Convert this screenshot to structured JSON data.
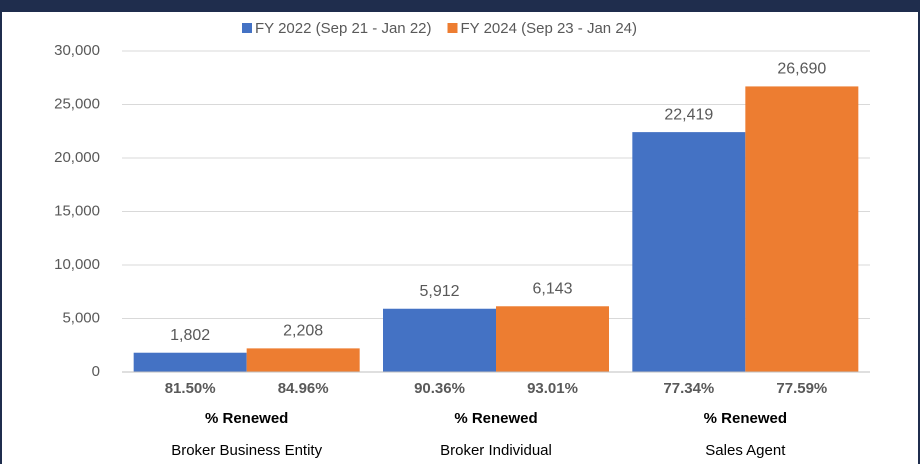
{
  "chart_data": {
    "type": "bar",
    "categories": [
      "Broker Business Entity",
      "Broker Individual",
      "Sales Agent"
    ],
    "category_sublabel": "% Renewed",
    "series": [
      {
        "name": "FY 2022 (Sep 21 - Jan 22)",
        "color": "#4472c4",
        "values": [
          1802,
          5912,
          22419
        ],
        "value_labels": [
          "1,802",
          "5,912",
          "22,419"
        ],
        "renewed": [
          "81.50%",
          "90.36%",
          "77.34%"
        ]
      },
      {
        "name": "FY 2024 (Sep 23 - Jan 24)",
        "color": "#ed7d31",
        "values": [
          2208,
          6143,
          26690
        ],
        "value_labels": [
          "2,208",
          "6,143",
          "26,690"
        ],
        "renewed": [
          "84.96%",
          "93.01%",
          "77.59%"
        ]
      }
    ],
    "ylim": [
      0,
      30000
    ],
    "yticks": [
      0,
      {
        "value": 5000,
        "label": "5,000"
      },
      {
        "value": 10000,
        "label": "10,000"
      },
      {
        "value": 15000,
        "label": "15,000"
      },
      {
        "value": 20000,
        "label": "20,000"
      },
      {
        "value": 25000,
        "label": "25,000"
      },
      {
        "value": 30000,
        "label": "30,000"
      }
    ],
    "grid": true,
    "legend": "top"
  }
}
